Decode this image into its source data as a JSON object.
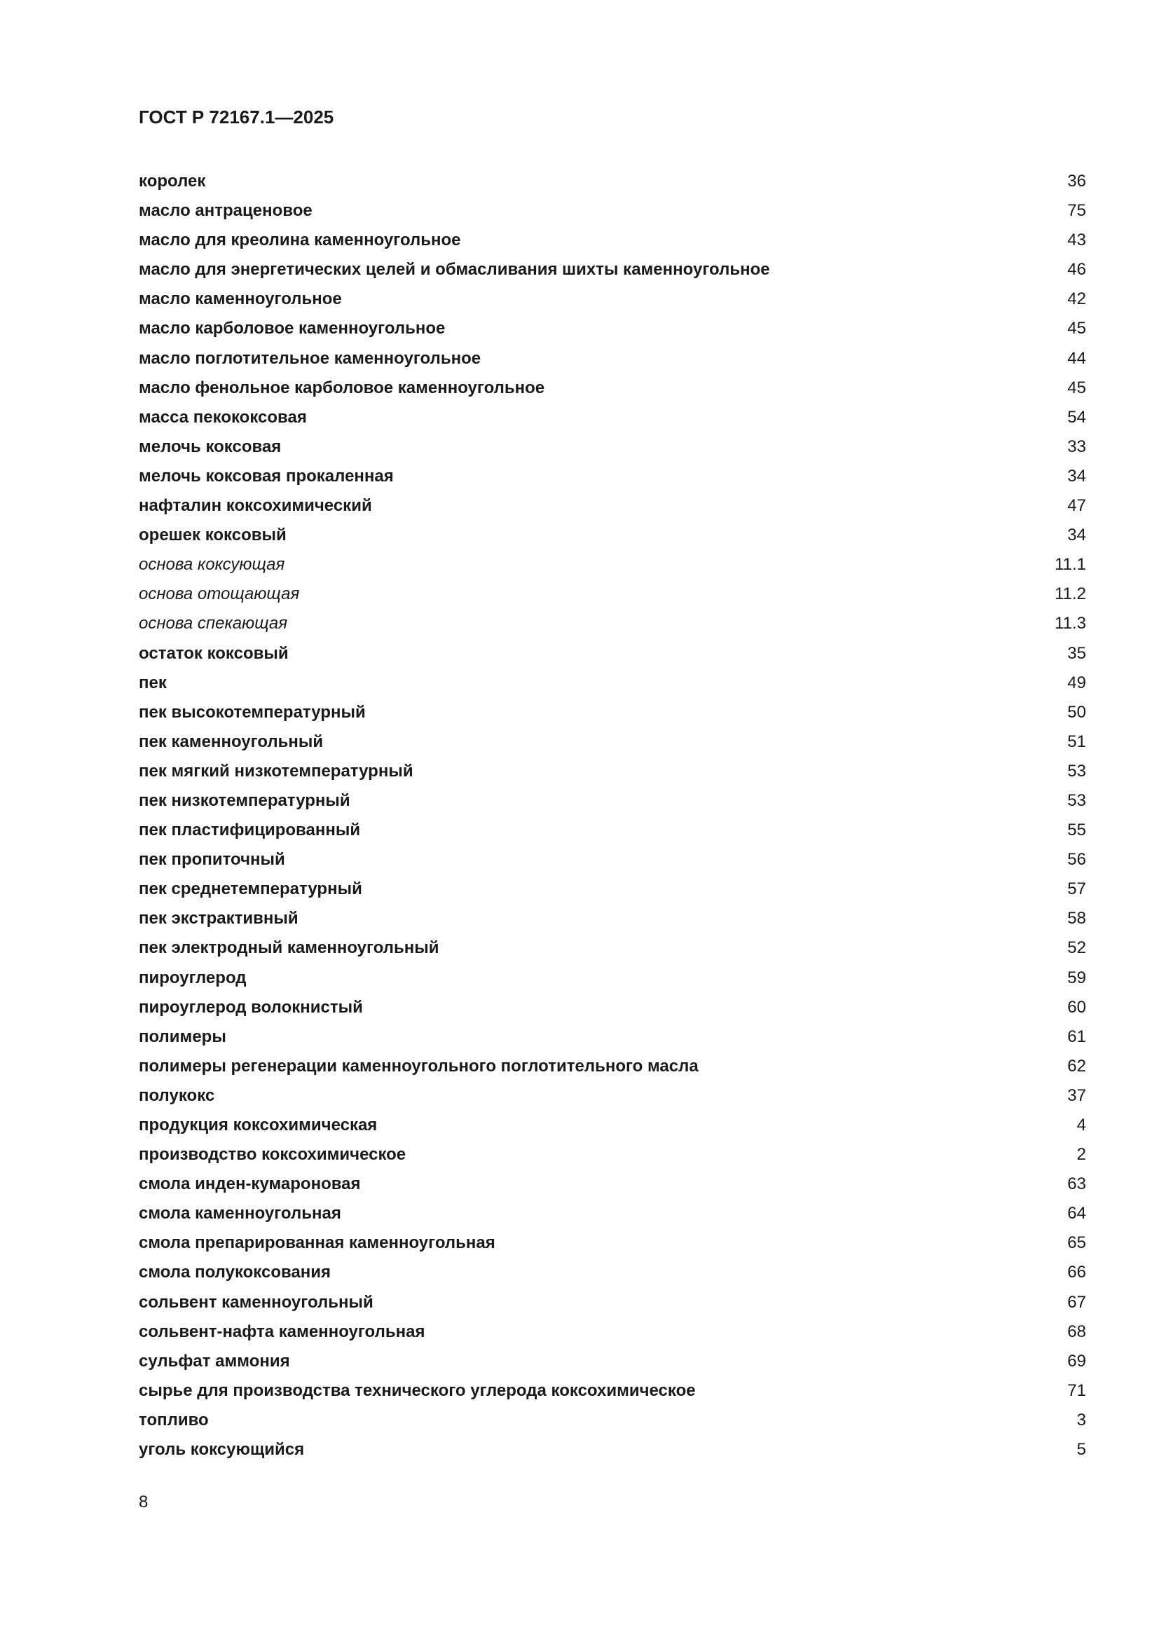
{
  "header": {
    "doc_id": "ГОСТ Р 72167.1—2025"
  },
  "index": [
    {
      "term": "королек",
      "ref": "36"
    },
    {
      "term": "масло антраценовое",
      "ref": "75"
    },
    {
      "term": "масло для креолина каменноугольное",
      "ref": "43"
    },
    {
      "term": "масло для энергетических целей и обмасливания шихты каменноугольное",
      "ref": "46"
    },
    {
      "term": "масло каменноугольное",
      "ref": "42"
    },
    {
      "term": "масло карболовое каменноугольное",
      "ref": "45"
    },
    {
      "term": "масло поглотительное каменноугольное",
      "ref": "44"
    },
    {
      "term": "масло фенольное карболовое каменноугольное",
      "ref": "45"
    },
    {
      "term": "масса пекококсовая",
      "ref": "54"
    },
    {
      "term": "мелочь коксовая",
      "ref": "33"
    },
    {
      "term": "мелочь коксовая прокаленная",
      "ref": "34"
    },
    {
      "term": "нафталин коксохимический",
      "ref": "47"
    },
    {
      "term": "орешек коксовый",
      "ref": "34"
    },
    {
      "term": "основа коксующая",
      "ref": "11.1",
      "italic": true
    },
    {
      "term": "основа отощающая",
      "ref": "11.2",
      "italic": true
    },
    {
      "term": "основа спекающая",
      "ref": "11.3",
      "italic": true
    },
    {
      "term": "остаток коксовый",
      "ref": "35"
    },
    {
      "term": "пек",
      "ref": "49"
    },
    {
      "term": "пек высокотемпературный",
      "ref": "50"
    },
    {
      "term": "пек каменноугольный",
      "ref": "51"
    },
    {
      "term": "пек мягкий низкотемпературный",
      "ref": "53"
    },
    {
      "term": "пек низкотемпературный",
      "ref": "53"
    },
    {
      "term": "пек пластифицированный",
      "ref": "55"
    },
    {
      "term": "пек пропиточный",
      "ref": "56"
    },
    {
      "term": "пек среднетемпературный",
      "ref": "57"
    },
    {
      "term": "пек экстрактивный",
      "ref": "58"
    },
    {
      "term": "пек электродный каменноугольный",
      "ref": "52"
    },
    {
      "term": "пироуглерод",
      "ref": "59"
    },
    {
      "term": "пироуглерод волокнистый",
      "ref": "60"
    },
    {
      "term": "полимеры",
      "ref": "61"
    },
    {
      "term": "полимеры регенерации каменноугольного поглотительного масла",
      "ref": "62"
    },
    {
      "term": "полукокс",
      "ref": "37"
    },
    {
      "term": "продукция коксохимическая",
      "ref": "4"
    },
    {
      "term": "производство коксохимическое",
      "ref": "2"
    },
    {
      "term": "смола инден-кумароновая",
      "ref": "63"
    },
    {
      "term": "смола каменноугольная",
      "ref": "64"
    },
    {
      "term": "смола препарированная каменноугольная",
      "ref": "65"
    },
    {
      "term": "смола полукоксования",
      "ref": "66"
    },
    {
      "term": "сольвент каменноугольный",
      "ref": "67"
    },
    {
      "term": "сольвент-нафта каменноугольная",
      "ref": "68"
    },
    {
      "term": "сульфат аммония",
      "ref": "69"
    },
    {
      "term": "сырье для производства технического углерода коксохимическое",
      "ref": "71"
    },
    {
      "term": "топливо",
      "ref": "3"
    },
    {
      "term": "уголь коксующийся",
      "ref": "5"
    }
  ],
  "footer": {
    "page_number": "8"
  }
}
